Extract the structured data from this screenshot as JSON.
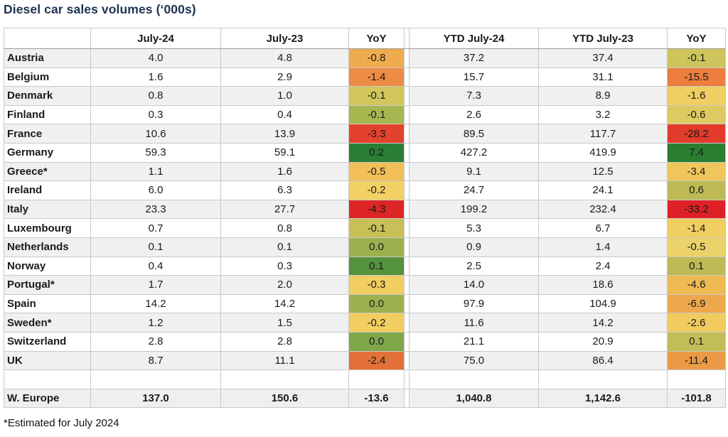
{
  "chart_data": {
    "type": "table",
    "title": "Diesel car sales volumes (‘000s)",
    "footnote": "*Estimated for July 2024",
    "columns": [
      "",
      "July-24",
      "July-23",
      "YoY",
      "YTD July-24",
      "YTD July-23",
      "YoY"
    ],
    "rows": [
      {
        "country": "Austria",
        "jul24": "4.0",
        "jul23": "4.8",
        "yoy": "-0.8",
        "yoy_color": "#EFAB50",
        "ytd24": "37.2",
        "ytd23": "37.4",
        "ytd_yoy": "-0.1",
        "ytd_yoy_color": "#CDC45B"
      },
      {
        "country": "Belgium",
        "jul24": "1.6",
        "jul23": "2.9",
        "yoy": "-1.4",
        "yoy_color": "#ED8C44",
        "ytd24": "15.7",
        "ytd23": "31.1",
        "ytd_yoy": "-15.5",
        "ytd_yoy_color": "#EC7E3E"
      },
      {
        "country": "Denmark",
        "jul24": "0.8",
        "jul23": "1.0",
        "yoy": "-0.1",
        "yoy_color": "#D2C65C",
        "ytd24": "7.3",
        "ytd23": "8.9",
        "ytd_yoy": "-1.6",
        "ytd_yoy_color": "#F0CE61"
      },
      {
        "country": "Finland",
        "jul24": "0.3",
        "jul23": "0.4",
        "yoy": "-0.1",
        "yoy_color": "#A6B74F",
        "ytd24": "2.6",
        "ytd23": "3.2",
        "ytd_yoy": "-0.6",
        "ytd_yoy_color": "#DCCB61"
      },
      {
        "country": "France",
        "jul24": "10.6",
        "jul23": "13.9",
        "yoy": "-3.3",
        "yoy_color": "#E5422D",
        "ytd24": "89.5",
        "ytd23": "117.7",
        "ytd_yoy": "-28.2",
        "ytd_yoy_color": "#E23A2B"
      },
      {
        "country": "Germany",
        "jul24": "59.3",
        "jul23": "59.1",
        "yoy": "0.2",
        "yoy_color": "#2A7E33",
        "ytd24": "427.2",
        "ytd23": "419.9",
        "ytd_yoy": "7.4",
        "ytd_yoy_color": "#2A7D31"
      },
      {
        "country": "Greece*",
        "jul24": "1.1",
        "jul23": "1.6",
        "yoy": "-0.5",
        "yoy_color": "#F1BE59",
        "ytd24": "9.1",
        "ytd23": "12.5",
        "ytd_yoy": "-3.4",
        "ytd_yoy_color": "#F0C65B"
      },
      {
        "country": "Ireland",
        "jul24": "6.0",
        "jul23": "6.3",
        "yoy": "-0.2",
        "yoy_color": "#F3D064",
        "ytd24": "24.7",
        "ytd23": "24.1",
        "ytd_yoy": "0.6",
        "ytd_yoy_color": "#BDBA55"
      },
      {
        "country": "Italy",
        "jul24": "23.3",
        "jul23": "27.7",
        "yoy": "-4.3",
        "yoy_color": "#DE2627",
        "ytd24": "199.2",
        "ytd23": "232.4",
        "ytd_yoy": "-33.2",
        "ytd_yoy_color": "#DE2127"
      },
      {
        "country": "Luxembourg",
        "jul24": "0.7",
        "jul23": "0.8",
        "yoy": "-0.1",
        "yoy_color": "#C8C057",
        "ytd24": "5.3",
        "ytd23": "6.7",
        "ytd_yoy": "-1.4",
        "ytd_yoy_color": "#F0CE61"
      },
      {
        "country": "Netherlands",
        "jul24": "0.1",
        "jul23": "0.1",
        "yoy": "0.0",
        "yoy_color": "#9DB04F",
        "ytd24": "0.9",
        "ytd23": "1.4",
        "ytd_yoy": "-0.5",
        "ytd_yoy_color": "#ECD26A"
      },
      {
        "country": "Norway",
        "jul24": "0.4",
        "jul23": "0.3",
        "yoy": "0.1",
        "yoy_color": "#55923C",
        "ytd24": "2.5",
        "ytd23": "2.4",
        "ytd_yoy": "0.1",
        "ytd_yoy_color": "#BDBA55"
      },
      {
        "country": "Portugal*",
        "jul24": "1.7",
        "jul23": "2.0",
        "yoy": "-0.3",
        "yoy_color": "#F2CD60",
        "ytd24": "14.0",
        "ytd23": "18.6",
        "ytd_yoy": "-4.6",
        "ytd_yoy_color": "#EFB953"
      },
      {
        "country": "Spain",
        "jul24": "14.2",
        "jul23": "14.2",
        "yoy": "0.0",
        "yoy_color": "#9DB04F",
        "ytd24": "97.9",
        "ytd23": "104.9",
        "ytd_yoy": "-6.9",
        "ytd_yoy_color": "#EDA84B"
      },
      {
        "country": "Sweden*",
        "jul24": "1.2",
        "jul23": "1.5",
        "yoy": "-0.2",
        "yoy_color": "#F2CD60",
        "ytd24": "11.6",
        "ytd23": "14.2",
        "ytd_yoy": "-2.6",
        "ytd_yoy_color": "#F1CB5E"
      },
      {
        "country": "Switzerland",
        "jul24": "2.8",
        "jul23": "2.8",
        "yoy": "0.0",
        "yoy_color": "#7FA648",
        "ytd24": "21.1",
        "ytd23": "20.9",
        "ytd_yoy": "0.1",
        "ytd_yoy_color": "#C3BD57"
      },
      {
        "country": "UK",
        "jul24": "8.7",
        "jul23": "11.1",
        "yoy": "-2.4",
        "yoy_color": "#E27038",
        "ytd24": "75.0",
        "ytd23": "86.4",
        "ytd_yoy": "-11.4",
        "ytd_yoy_color": "#EB9A45"
      }
    ],
    "total_row": {
      "country": "W. Europe",
      "jul24": "137.0",
      "jul23": "150.6",
      "yoy": "-13.6",
      "ytd24": "1,040.8",
      "ytd23": "1,142.6",
      "ytd_yoy": "-101.8"
    },
    "colors": {
      "title_text": "#1F3352",
      "row_stripe": "#F0F0F0",
      "total_row_bg": "#EFEFEF",
      "grid_line": "#C9C9C9",
      "scale_positive_green": "#2A7E33",
      "scale_mid_yellow": "#F2CD60",
      "scale_negative_red": "#DE2627"
    },
    "layout": {
      "legend": "none",
      "grid": "on"
    }
  }
}
